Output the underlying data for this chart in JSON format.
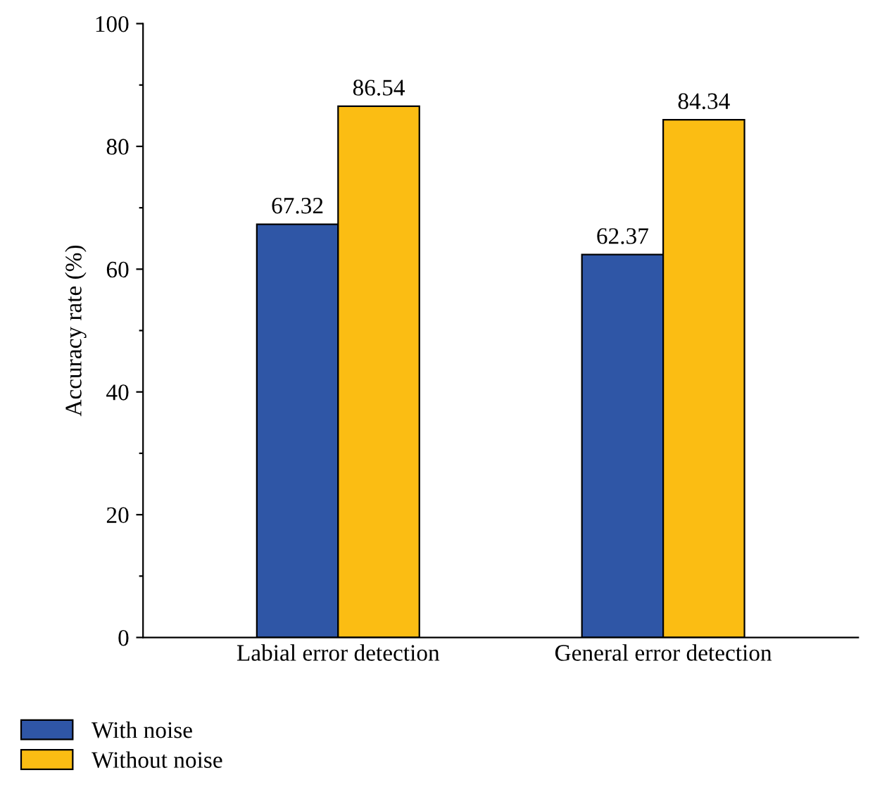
{
  "chart_data": {
    "type": "bar",
    "ylabel": "Accuracy rate (%)",
    "categories": [
      "Labial error detection",
      "General error detection"
    ],
    "series": [
      {
        "name": "With noise",
        "color": "#2f56a6",
        "values": [
          67.32,
          62.37
        ]
      },
      {
        "name": "Without noise",
        "color": "#fbbd13",
        "values": [
          86.54,
          84.34
        ]
      }
    ],
    "ylim": [
      0,
      100
    ],
    "yticks": [
      0,
      {
        "value": 10,
        "label": null
      },
      20,
      {
        "value": 30,
        "label": null
      },
      40,
      {
        "value": 50,
        "label": null
      },
      60,
      {
        "value": 70,
        "label": null
      },
      80,
      {
        "value": 90,
        "label": null
      },
      100
    ],
    "data_labels": true,
    "grid": false,
    "legend": "bottom left"
  }
}
